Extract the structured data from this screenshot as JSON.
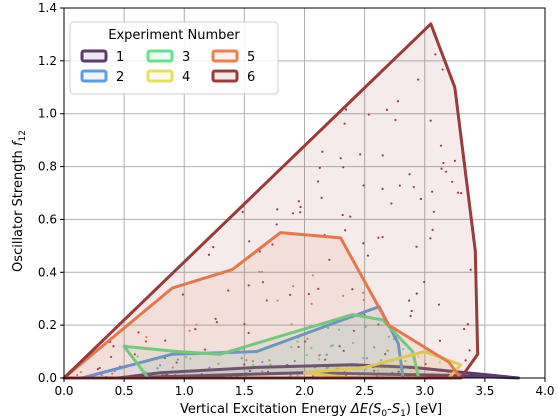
{
  "chart_data": {
    "type": "scatter",
    "xlabel": "Vertical Excitation Energy ΔE(S0-S1) [eV]",
    "xlabel_parts": {
      "pre": "Vertical Excitation Energy ",
      "delta": "ΔE(",
      "s0": "S",
      "s0_sub": "0",
      "dash": "-",
      "s1": "S",
      "s1_sub": "1",
      "post": ") [eV]"
    },
    "ylabel": "Oscillator Strength f12",
    "ylabel_parts": {
      "main": "Oscillator Strength ",
      "f": "f",
      "f_sub": "12"
    },
    "xlim": [
      0.0,
      4.0
    ],
    "ylim": [
      0.0,
      1.4
    ],
    "xticks": [
      "0.0",
      "0.5",
      "1.0",
      "1.5",
      "2.0",
      "2.5",
      "3.0",
      "3.5",
      "4.0"
    ],
    "yticks": [
      "0.0",
      "0.2",
      "0.4",
      "0.6",
      "0.8",
      "1.0",
      "1.2",
      "1.4"
    ],
    "grid": true,
    "legend": {
      "title": "Experiment Number",
      "placement": "top-left",
      "ncol": 3
    },
    "series": [
      {
        "name": "1",
        "color": "#5b3a6e",
        "hull": [
          [
            0.45,
            0.0
          ],
          [
            0.8,
            0.02
          ],
          [
            1.6,
            0.04
          ],
          [
            2.4,
            0.05
          ],
          [
            2.9,
            0.04
          ],
          [
            3.78,
            0.0
          ],
          [
            3.2,
            0.01
          ],
          [
            2.0,
            0.02
          ],
          [
            1.2,
            0.01
          ]
        ]
      },
      {
        "name": "2",
        "color": "#5b9ee6",
        "hull": [
          [
            0.15,
            0.0
          ],
          [
            0.9,
            0.09
          ],
          [
            1.6,
            0.1
          ],
          [
            2.2,
            0.2
          ],
          [
            2.62,
            0.27
          ],
          [
            2.78,
            0.13
          ],
          [
            2.82,
            0.0
          ],
          [
            1.0,
            0.0
          ]
        ]
      },
      {
        "name": "3",
        "color": "#62e38c",
        "hull": [
          [
            0.5,
            0.12
          ],
          [
            0.95,
            0.1
          ],
          [
            1.3,
            0.09
          ],
          [
            2.4,
            0.24
          ],
          [
            2.65,
            0.22
          ],
          [
            2.9,
            0.1
          ],
          [
            2.95,
            0.0
          ],
          [
            0.7,
            0.0
          ]
        ]
      },
      {
        "name": "4",
        "color": "#e6e15a",
        "hull": [
          [
            2.0,
            0.02
          ],
          [
            2.5,
            0.04
          ],
          [
            3.0,
            0.1
          ],
          [
            3.3,
            0.05
          ],
          [
            3.2,
            0.0
          ],
          [
            2.4,
            0.0
          ]
        ]
      },
      {
        "name": "5",
        "color": "#ee7f4d",
        "hull": [
          [
            0.0,
            0.0
          ],
          [
            0.9,
            0.34
          ],
          [
            1.4,
            0.41
          ],
          [
            1.8,
            0.55
          ],
          [
            2.3,
            0.53
          ],
          [
            2.7,
            0.2
          ],
          [
            3.2,
            0.06
          ],
          [
            3.3,
            0.0
          ]
        ]
      },
      {
        "name": "6",
        "color": "#9a3b3b",
        "hull": [
          [
            0.0,
            0.0
          ],
          [
            3.05,
            1.34
          ],
          [
            3.25,
            1.1
          ],
          [
            3.42,
            0.48
          ],
          [
            3.44,
            0.09
          ],
          [
            3.3,
            0.0
          ]
        ]
      }
    ]
  }
}
